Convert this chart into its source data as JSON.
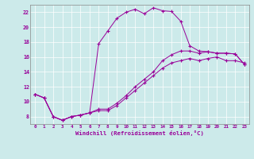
{
  "xlabel": "Windchill (Refroidissement éolien,°C)",
  "bg_color": "#cceaea",
  "grid_color": "#ffffff",
  "line_color": "#990099",
  "xlim": [
    -0.5,
    23.5
  ],
  "ylim": [
    7.0,
    23.0
  ],
  "xticks": [
    0,
    1,
    2,
    3,
    4,
    5,
    6,
    7,
    8,
    9,
    10,
    11,
    12,
    13,
    14,
    15,
    16,
    17,
    18,
    19,
    20,
    21,
    22,
    23
  ],
  "yticks": [
    8,
    10,
    12,
    14,
    16,
    18,
    20,
    22
  ],
  "series": [
    {
      "x": [
        0,
        1,
        2,
        3,
        4,
        5,
        6,
        7,
        8,
        9,
        10,
        11,
        12,
        13,
        14,
        15,
        16,
        17,
        18,
        19,
        20,
        21,
        22,
        23
      ],
      "y": [
        11.0,
        10.5,
        8.0,
        7.5,
        8.0,
        8.2,
        8.5,
        8.8,
        8.8,
        9.5,
        10.5,
        11.5,
        12.5,
        13.5,
        14.5,
        15.2,
        15.5,
        15.8,
        15.5,
        15.8,
        16.0,
        15.5,
        15.5,
        15.2
      ]
    },
    {
      "x": [
        0,
        1,
        2,
        3,
        4,
        5,
        6,
        7,
        8,
        9,
        10,
        11,
        12,
        13,
        14,
        15,
        16,
        17,
        18,
        19,
        20,
        21,
        22,
        23
      ],
      "y": [
        11.0,
        10.5,
        8.0,
        7.5,
        8.0,
        8.2,
        8.5,
        17.8,
        19.5,
        21.2,
        22.0,
        22.4,
        21.8,
        22.6,
        22.2,
        22.1,
        20.8,
        17.5,
        16.8,
        16.7,
        16.5,
        16.5,
        16.4,
        15.0
      ]
    },
    {
      "x": [
        0,
        1,
        2,
        3,
        4,
        5,
        6,
        7,
        8,
        9,
        10,
        11,
        12,
        13,
        14,
        15,
        16,
        17,
        18,
        19,
        20,
        21,
        22,
        23
      ],
      "y": [
        11.0,
        10.5,
        8.0,
        7.5,
        8.0,
        8.2,
        8.5,
        9.0,
        9.0,
        9.8,
        10.8,
        12.0,
        13.0,
        14.0,
        15.5,
        16.3,
        16.8,
        16.8,
        16.5,
        16.7,
        16.5,
        16.5,
        16.4,
        15.0
      ]
    }
  ]
}
